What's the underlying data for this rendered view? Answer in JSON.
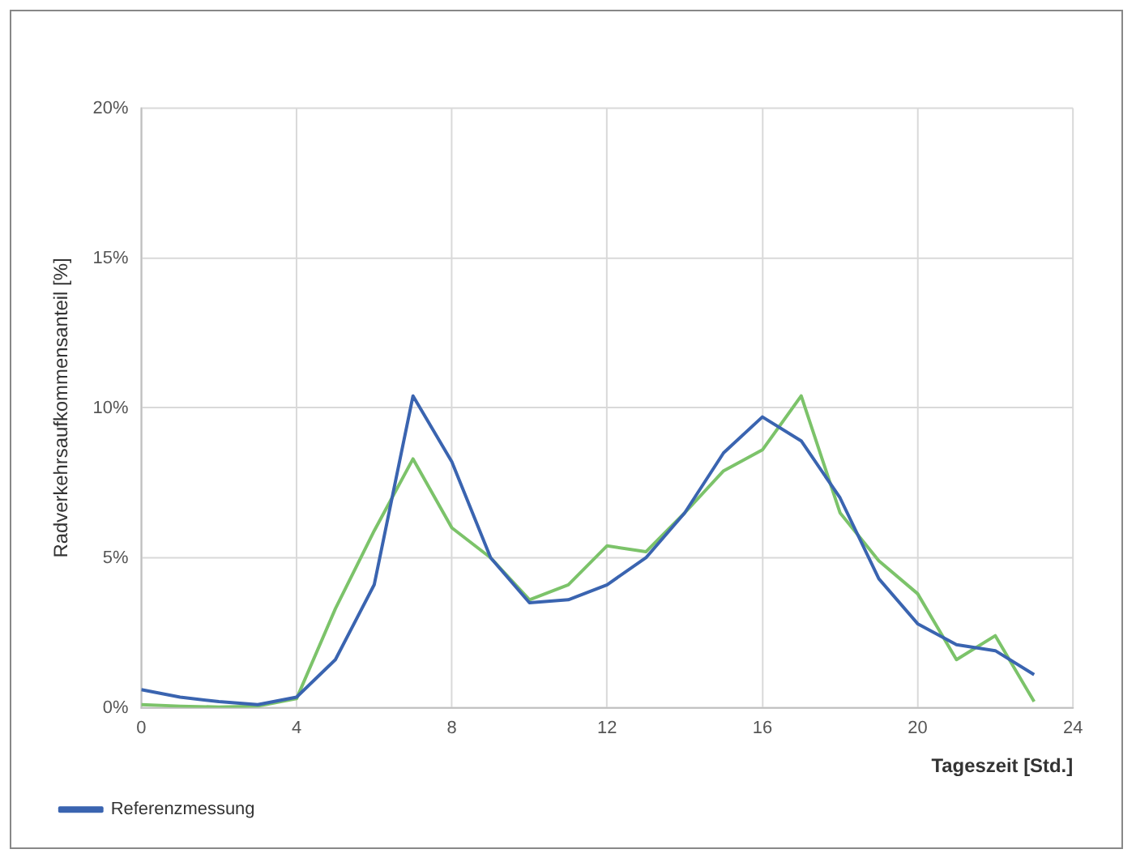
{
  "chart_data": {
    "type": "line",
    "xlabel": "Tageszeit [Std.]",
    "ylabel": "Radverkehrsaufkommensanteil [%]",
    "x": [
      0,
      1,
      2,
      3,
      4,
      5,
      6,
      7,
      8,
      9,
      10,
      11,
      12,
      13,
      14,
      15,
      16,
      17,
      18,
      19,
      20,
      21,
      22,
      23
    ],
    "series": [
      {
        "name": "Referenzmessung",
        "color": "#3a64b0",
        "values": [
          0.6,
          0.35,
          0.2,
          0.1,
          0.35,
          1.6,
          4.1,
          10.4,
          8.2,
          5.0,
          3.5,
          3.6,
          4.1,
          5.0,
          6.5,
          8.5,
          9.7,
          8.9,
          7.0,
          4.3,
          2.8,
          2.1,
          1.9,
          1.1
        ]
      },
      {
        "color": "#7cc36a",
        "values": [
          0.1,
          0.05,
          0.02,
          0.05,
          0.3,
          3.3,
          5.9,
          8.3,
          6.0,
          5.0,
          3.6,
          4.1,
          5.4,
          5.2,
          6.5,
          7.9,
          8.6,
          10.4,
          6.5,
          4.9,
          3.8,
          1.6,
          2.4,
          0.2
        ]
      }
    ],
    "xlim": [
      0,
      24
    ],
    "xticks": [
      0,
      4,
      8,
      12,
      16,
      20,
      24
    ],
    "ylim": [
      0,
      20
    ],
    "yticks": [
      {
        "value": 0,
        "label": "0%"
      },
      {
        "value": 5,
        "label": "5%"
      },
      {
        "value": 10,
        "label": "10%"
      },
      {
        "value": 15,
        "label": "15%"
      },
      {
        "value": 20,
        "label": "20%"
      }
    ],
    "grid": true,
    "legend": "bottom",
    "marker": "none",
    "line_style": "solid"
  }
}
